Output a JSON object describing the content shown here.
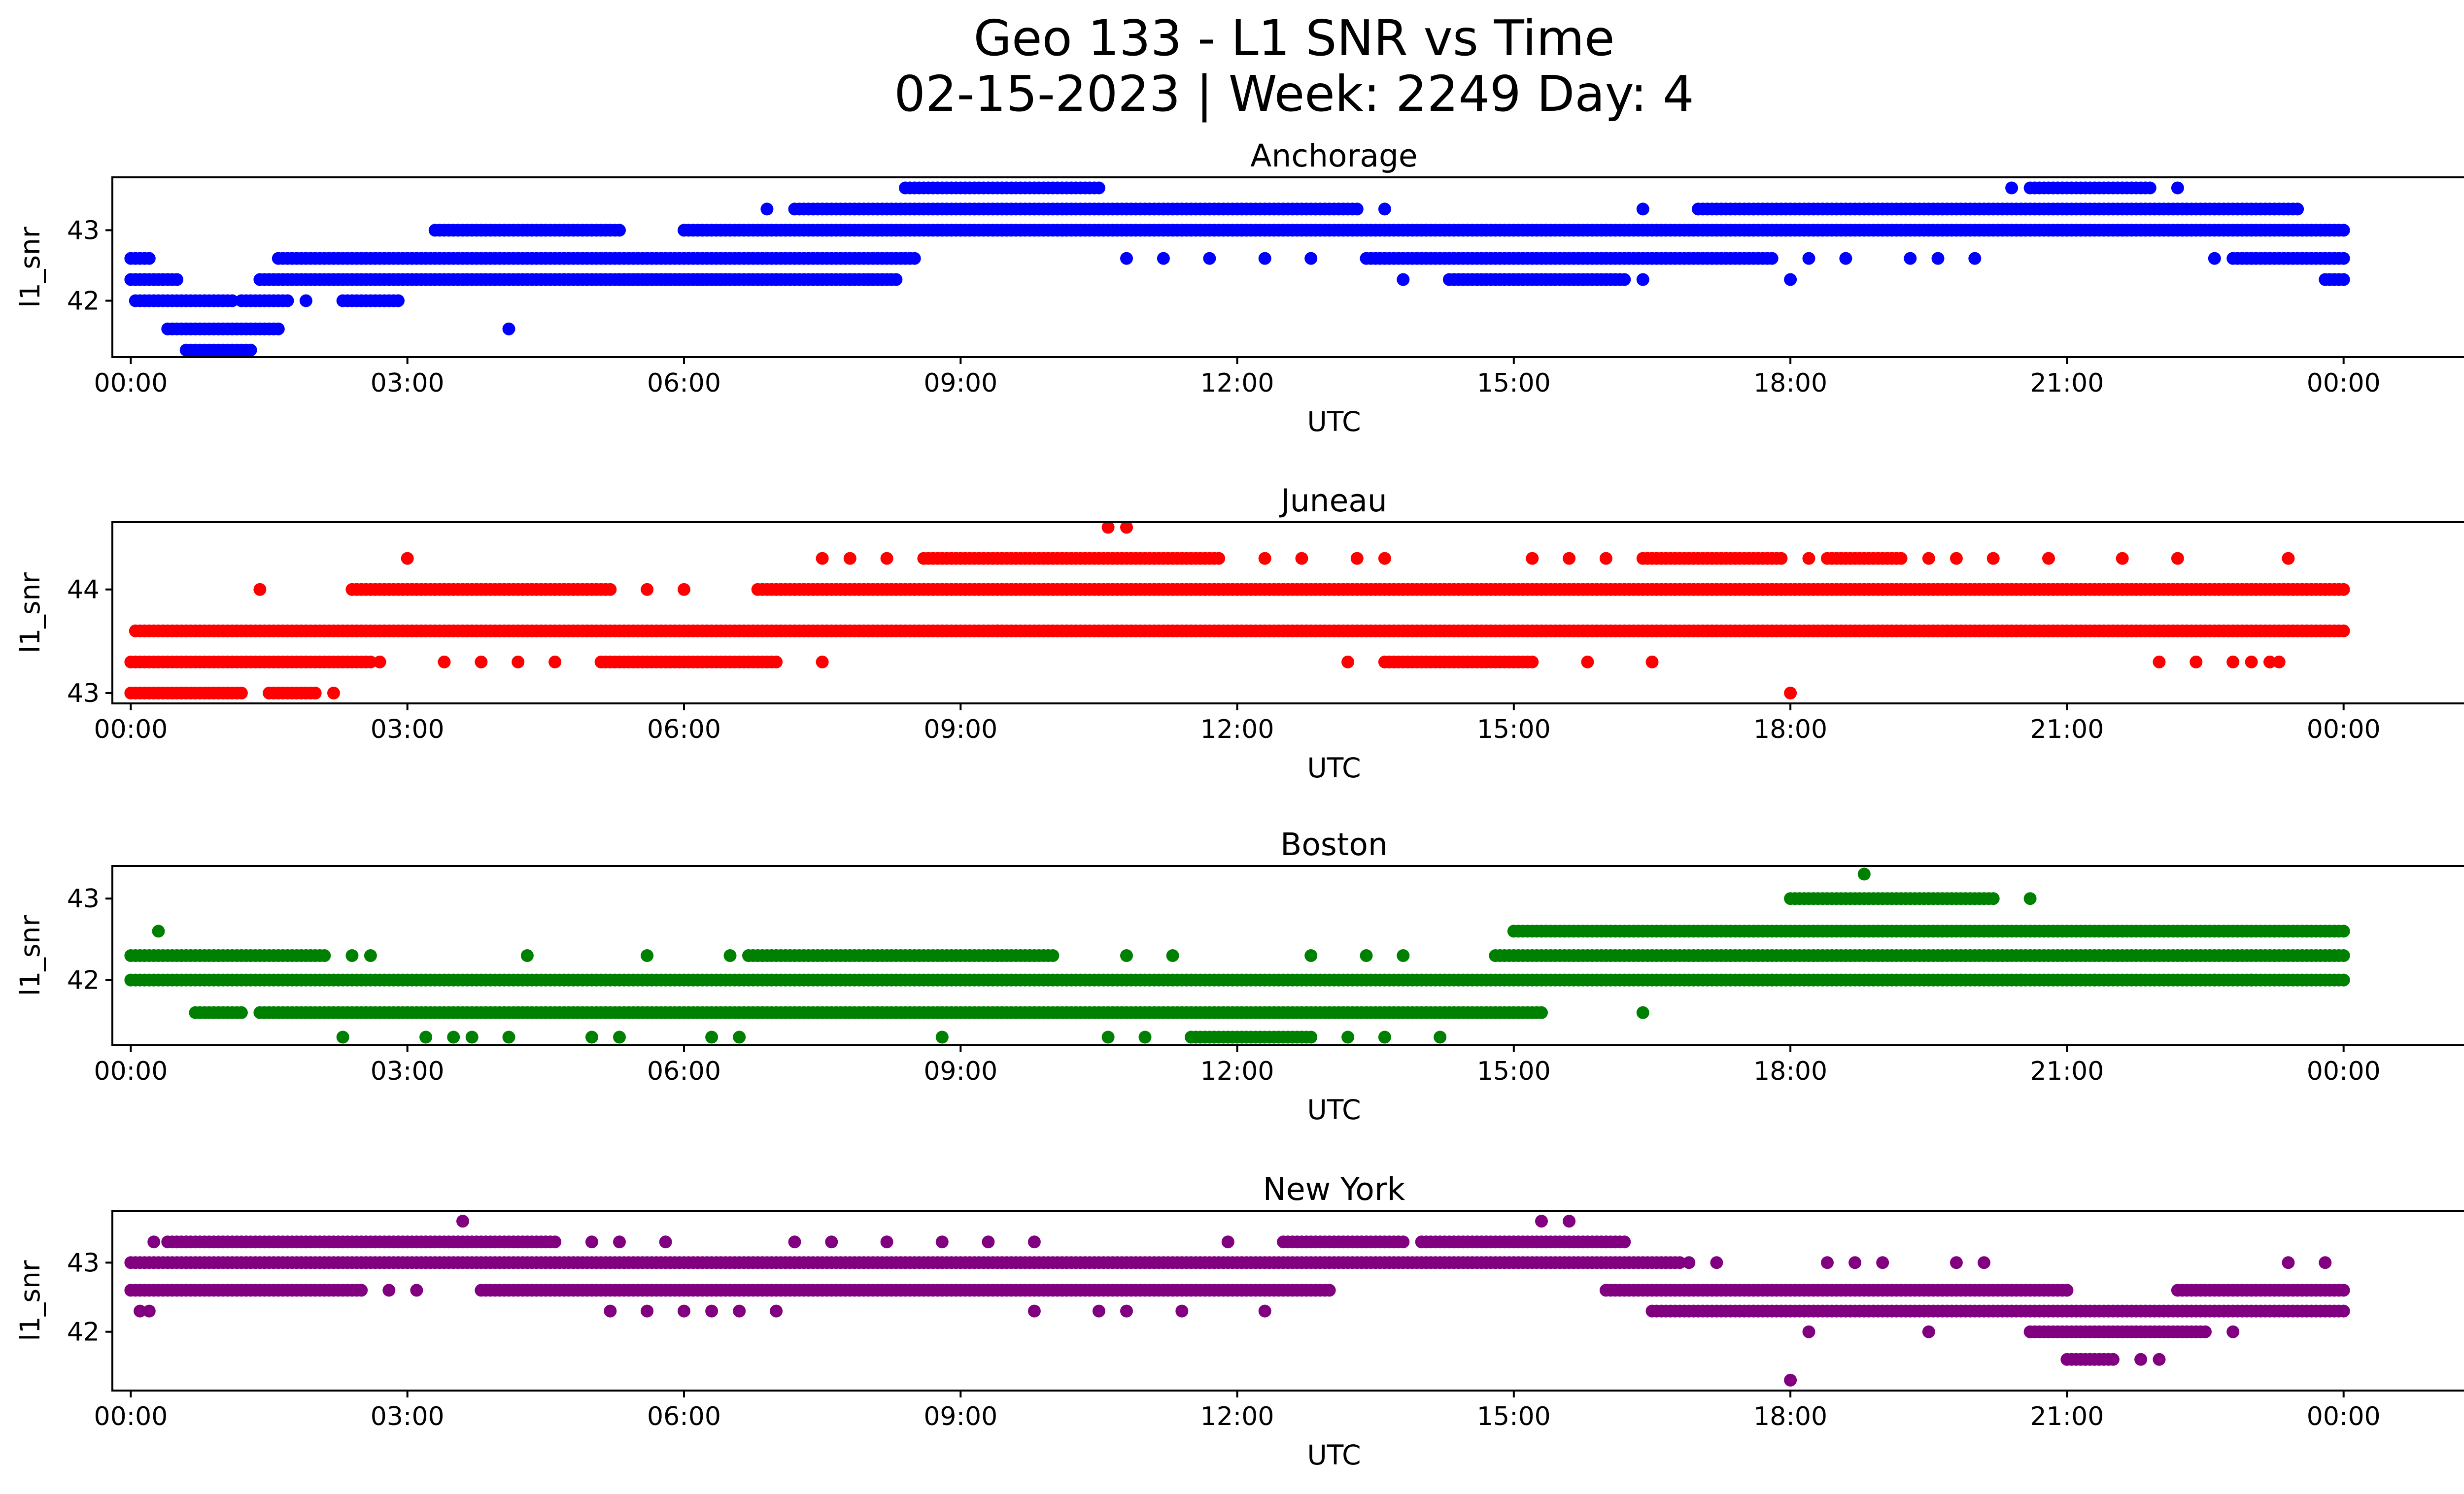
{
  "figure": {
    "title_line1": "Geo 133 - L1 SNR vs Time",
    "title_line2": "02-15-2023 | Week: 2249 Day: 4"
  },
  "chart_data": [
    {
      "type": "scatter",
      "title": "Anchorage",
      "xlabel": "UTC",
      "ylabel": "l1_snr",
      "color": "#0000ff",
      "xlim": [
        -0.2,
        26.3
      ],
      "ylim": [
        41.2,
        43.75
      ],
      "xticks": [
        "00:00",
        "03:00",
        "06:00",
        "09:00",
        "12:00",
        "15:00",
        "18:00",
        "21:00",
        "00:00"
      ],
      "yticks": [
        42,
        43
      ],
      "segments": [
        {
          "y": 42.6,
          "x0": 0.0,
          "x1": 0.2
        },
        {
          "y": 42.3,
          "x0": 0.0,
          "x1": 0.5
        },
        {
          "y": 42.0,
          "x0": 0.05,
          "x1": 1.1
        },
        {
          "y": 41.6,
          "x0": 0.4,
          "x1": 1.6
        },
        {
          "y": 41.3,
          "x0": 0.6,
          "x1": 1.3
        },
        {
          "y": 42.0,
          "x0": 1.2,
          "x1": 1.7
        },
        {
          "y": 42.3,
          "x0": 1.4,
          "x1": 8.3
        },
        {
          "y": 42.6,
          "x0": 1.6,
          "x1": 8.5
        },
        {
          "y": 42.0,
          "x0": 2.3,
          "x1": 2.9
        },
        {
          "y": 43.0,
          "x0": 3.3,
          "x1": 5.3
        },
        {
          "y": 42.3,
          "x0": 5.3,
          "x1": 6.5
        },
        {
          "y": 43.0,
          "x0": 6.0,
          "x1": 24.0
        },
        {
          "y": 43.3,
          "x0": 7.2,
          "x1": 13.3
        },
        {
          "y": 43.6,
          "x0": 8.4,
          "x1": 10.5
        },
        {
          "y": 42.6,
          "x0": 13.4,
          "x1": 17.8
        },
        {
          "y": 42.3,
          "x0": 14.3,
          "x1": 16.2
        },
        {
          "y": 43.3,
          "x0": 17.0,
          "x1": 23.5
        },
        {
          "y": 43.6,
          "x0": 20.6,
          "x1": 21.9
        },
        {
          "y": 42.6,
          "x0": 22.8,
          "x1": 24.0
        },
        {
          "y": 42.3,
          "x0": 23.8,
          "x1": 24.0
        }
      ],
      "points": [
        {
          "x": 1.9,
          "y": 42.0
        },
        {
          "x": 4.1,
          "y": 41.6
        },
        {
          "x": 6.9,
          "y": 43.3
        },
        {
          "x": 7.0,
          "y": 42.3
        },
        {
          "x": 7.8,
          "y": 42.3
        },
        {
          "x": 8.0,
          "y": 42.3
        },
        {
          "x": 10.8,
          "y": 42.6
        },
        {
          "x": 11.2,
          "y": 42.6
        },
        {
          "x": 11.7,
          "y": 42.6
        },
        {
          "x": 12.3,
          "y": 42.6
        },
        {
          "x": 12.8,
          "y": 42.6
        },
        {
          "x": 13.6,
          "y": 43.3
        },
        {
          "x": 13.8,
          "y": 42.3
        },
        {
          "x": 16.4,
          "y": 42.3
        },
        {
          "x": 16.4,
          "y": 43.3
        },
        {
          "x": 18.0,
          "y": 42.3
        },
        {
          "x": 18.2,
          "y": 42.6
        },
        {
          "x": 18.6,
          "y": 42.6
        },
        {
          "x": 19.3,
          "y": 42.6
        },
        {
          "x": 19.6,
          "y": 42.6
        },
        {
          "x": 20.0,
          "y": 42.6
        },
        {
          "x": 20.4,
          "y": 43.6
        },
        {
          "x": 22.2,
          "y": 43.6
        },
        {
          "x": 22.6,
          "y": 42.6
        }
      ]
    },
    {
      "type": "scatter",
      "title": "Juneau",
      "xlabel": "UTC",
      "ylabel": "l1_snr",
      "color": "#ff0000",
      "xlim": [
        -0.2,
        26.3
      ],
      "ylim": [
        42.9,
        44.65
      ],
      "xticks": [
        "00:00",
        "03:00",
        "06:00",
        "09:00",
        "12:00",
        "15:00",
        "18:00",
        "21:00",
        "00:00"
      ],
      "yticks": [
        43,
        44
      ],
      "segments": [
        {
          "y": 43.0,
          "x0": 0.0,
          "x1": 1.2
        },
        {
          "y": 43.3,
          "x0": 0.0,
          "x1": 2.6
        },
        {
          "y": 43.6,
          "x0": 0.05,
          "x1": 24.0
        },
        {
          "y": 43.0,
          "x0": 1.5,
          "x1": 2.0
        },
        {
          "y": 44.0,
          "x0": 2.4,
          "x1": 5.2
        },
        {
          "y": 43.3,
          "x0": 5.1,
          "x1": 7.0
        },
        {
          "y": 44.0,
          "x0": 6.8,
          "x1": 24.0
        },
        {
          "y": 44.3,
          "x0": 8.6,
          "x1": 11.8
        },
        {
          "y": 44.3,
          "x0": 16.4,
          "x1": 17.9
        },
        {
          "y": 44.3,
          "x0": 18.4,
          "x1": 19.2
        },
        {
          "y": 43.3,
          "x0": 13.6,
          "x1": 15.2
        }
      ],
      "points": [
        {
          "x": 1.4,
          "y": 44.0
        },
        {
          "x": 2.0,
          "y": 43.0
        },
        {
          "x": 2.2,
          "y": 43.0
        },
        {
          "x": 2.7,
          "y": 43.3
        },
        {
          "x": 3.0,
          "y": 44.3
        },
        {
          "x": 3.4,
          "y": 43.3
        },
        {
          "x": 3.8,
          "y": 43.3
        },
        {
          "x": 4.2,
          "y": 43.3
        },
        {
          "x": 4.6,
          "y": 43.3
        },
        {
          "x": 5.6,
          "y": 44.0
        },
        {
          "x": 6.0,
          "y": 44.0
        },
        {
          "x": 7.5,
          "y": 43.3
        },
        {
          "x": 7.5,
          "y": 44.3
        },
        {
          "x": 7.8,
          "y": 44.3
        },
        {
          "x": 8.2,
          "y": 44.3
        },
        {
          "x": 9.4,
          "y": 43.6
        },
        {
          "x": 10.6,
          "y": 44.6
        },
        {
          "x": 10.8,
          "y": 44.6
        },
        {
          "x": 12.3,
          "y": 44.3
        },
        {
          "x": 12.7,
          "y": 44.3
        },
        {
          "x": 13.2,
          "y": 43.3
        },
        {
          "x": 13.3,
          "y": 44.3
        },
        {
          "x": 13.6,
          "y": 44.3
        },
        {
          "x": 15.2,
          "y": 44.3
        },
        {
          "x": 15.6,
          "y": 44.3
        },
        {
          "x": 15.8,
          "y": 43.3
        },
        {
          "x": 16.0,
          "y": 44.3
        },
        {
          "x": 16.5,
          "y": 43.3
        },
        {
          "x": 18.0,
          "y": 43.0
        },
        {
          "x": 18.2,
          "y": 44.3
        },
        {
          "x": 19.5,
          "y": 44.3
        },
        {
          "x": 19.8,
          "y": 44.3
        },
        {
          "x": 20.2,
          "y": 44.3
        },
        {
          "x": 20.8,
          "y": 44.3
        },
        {
          "x": 21.6,
          "y": 44.3
        },
        {
          "x": 22.0,
          "y": 43.3
        },
        {
          "x": 22.2,
          "y": 44.3
        },
        {
          "x": 22.4,
          "y": 43.3
        },
        {
          "x": 22.8,
          "y": 43.3
        },
        {
          "x": 23.0,
          "y": 43.3
        },
        {
          "x": 23.2,
          "y": 43.3
        },
        {
          "x": 23.3,
          "y": 43.3
        },
        {
          "x": 23.4,
          "y": 44.3
        }
      ]
    },
    {
      "type": "scatter",
      "title": "Boston",
      "xlabel": "UTC",
      "ylabel": "l1_snr",
      "color": "#008000",
      "xlim": [
        -0.2,
        26.3
      ],
      "ylim": [
        41.2,
        43.4
      ],
      "xticks": [
        "00:00",
        "03:00",
        "06:00",
        "09:00",
        "12:00",
        "15:00",
        "18:00",
        "21:00",
        "00:00"
      ],
      "yticks": [
        42,
        43
      ],
      "segments": [
        {
          "y": 42.3,
          "x0": 0.0,
          "x1": 2.1
        },
        {
          "y": 42.0,
          "x0": 0.0,
          "x1": 24.0
        },
        {
          "y": 41.6,
          "x0": 0.7,
          "x1": 1.2
        },
        {
          "y": 41.6,
          "x0": 1.4,
          "x1": 15.3
        },
        {
          "y": 42.3,
          "x0": 6.7,
          "x1": 10.0
        },
        {
          "y": 42.3,
          "x0": 14.8,
          "x1": 24.0
        },
        {
          "y": 42.6,
          "x0": 15.0,
          "x1": 24.0
        },
        {
          "y": 43.0,
          "x0": 18.0,
          "x1": 20.2
        },
        {
          "y": 41.3,
          "x0": 11.5,
          "x1": 12.8
        }
      ],
      "points": [
        {
          "x": 0.3,
          "y": 42.6
        },
        {
          "x": 2.3,
          "y": 41.3
        },
        {
          "x": 2.4,
          "y": 42.3
        },
        {
          "x": 2.6,
          "y": 42.3
        },
        {
          "x": 3.2,
          "y": 41.3
        },
        {
          "x": 3.5,
          "y": 41.3
        },
        {
          "x": 3.7,
          "y": 41.3
        },
        {
          "x": 4.1,
          "y": 41.3
        },
        {
          "x": 4.3,
          "y": 42.3
        },
        {
          "x": 5.0,
          "y": 41.3
        },
        {
          "x": 5.3,
          "y": 41.3
        },
        {
          "x": 5.6,
          "y": 42.3
        },
        {
          "x": 6.3,
          "y": 41.3
        },
        {
          "x": 6.5,
          "y": 42.3
        },
        {
          "x": 6.6,
          "y": 41.3
        },
        {
          "x": 8.8,
          "y": 41.3
        },
        {
          "x": 10.6,
          "y": 41.3
        },
        {
          "x": 10.8,
          "y": 42.3
        },
        {
          "x": 11.0,
          "y": 41.3
        },
        {
          "x": 11.3,
          "y": 42.3
        },
        {
          "x": 12.8,
          "y": 42.3
        },
        {
          "x": 13.2,
          "y": 41.3
        },
        {
          "x": 13.4,
          "y": 42.3
        },
        {
          "x": 13.6,
          "y": 41.3
        },
        {
          "x": 13.8,
          "y": 42.3
        },
        {
          "x": 14.2,
          "y": 41.3
        },
        {
          "x": 16.4,
          "y": 41.6
        },
        {
          "x": 17.8,
          "y": 42.0
        },
        {
          "x": 18.0,
          "y": 42.0
        },
        {
          "x": 18.8,
          "y": 43.3
        },
        {
          "x": 20.5,
          "y": 42.0
        },
        {
          "x": 20.6,
          "y": 43.0
        },
        {
          "x": 21.3,
          "y": 42.0
        },
        {
          "x": 22.6,
          "y": 42.0
        },
        {
          "x": 23.0,
          "y": 42.0
        }
      ]
    },
    {
      "type": "scatter",
      "title": "New York",
      "xlabel": "UTC",
      "ylabel": "l1_snr",
      "color": "#800080",
      "xlim": [
        -0.2,
        26.3
      ],
      "ylim": [
        41.15,
        43.75
      ],
      "xticks": [
        "00:00",
        "03:00",
        "06:00",
        "09:00",
        "12:00",
        "15:00",
        "18:00",
        "21:00",
        "00:00"
      ],
      "yticks": [
        42,
        43
      ],
      "segments": [
        {
          "y": 43.0,
          "x0": 0.0,
          "x1": 16.8
        },
        {
          "y": 42.6,
          "x0": 0.0,
          "x1": 2.5
        },
        {
          "y": 43.3,
          "x0": 0.4,
          "x1": 4.6
        },
        {
          "y": 42.6,
          "x0": 3.8,
          "x1": 13.0
        },
        {
          "y": 43.3,
          "x0": 12.5,
          "x1": 13.8
        },
        {
          "y": 43.3,
          "x0": 14.0,
          "x1": 16.2
        },
        {
          "y": 42.6,
          "x0": 16.0,
          "x1": 21.0
        },
        {
          "y": 42.3,
          "x0": 16.5,
          "x1": 24.0
        },
        {
          "y": 42.0,
          "x0": 20.6,
          "x1": 22.5
        },
        {
          "y": 41.6,
          "x0": 21.0,
          "x1": 21.5
        },
        {
          "y": 42.6,
          "x0": 22.2,
          "x1": 24.0
        }
      ],
      "points": [
        {
          "x": 0.1,
          "y": 42.3
        },
        {
          "x": 0.2,
          "y": 42.3
        },
        {
          "x": 0.25,
          "y": 43.3
        },
        {
          "x": 2.8,
          "y": 42.6
        },
        {
          "x": 3.1,
          "y": 42.6
        },
        {
          "x": 3.6,
          "y": 43.6
        },
        {
          "x": 5.0,
          "y": 43.3
        },
        {
          "x": 5.2,
          "y": 42.3
        },
        {
          "x": 5.3,
          "y": 43.3
        },
        {
          "x": 5.6,
          "y": 42.3
        },
        {
          "x": 5.8,
          "y": 43.3
        },
        {
          "x": 6.0,
          "y": 42.3
        },
        {
          "x": 6.3,
          "y": 42.3
        },
        {
          "x": 6.6,
          "y": 42.3
        },
        {
          "x": 7.0,
          "y": 42.3
        },
        {
          "x": 7.2,
          "y": 43.3
        },
        {
          "x": 7.6,
          "y": 43.3
        },
        {
          "x": 8.2,
          "y": 43.3
        },
        {
          "x": 8.8,
          "y": 43.3
        },
        {
          "x": 9.3,
          "y": 43.3
        },
        {
          "x": 9.8,
          "y": 43.3
        },
        {
          "x": 9.8,
          "y": 42.3
        },
        {
          "x": 10.5,
          "y": 42.3
        },
        {
          "x": 10.8,
          "y": 42.3
        },
        {
          "x": 11.4,
          "y": 42.3
        },
        {
          "x": 11.9,
          "y": 43.3
        },
        {
          "x": 12.3,
          "y": 42.3
        },
        {
          "x": 15.3,
          "y": 43.6
        },
        {
          "x": 15.6,
          "y": 43.6
        },
        {
          "x": 16.9,
          "y": 43.0
        },
        {
          "x": 17.2,
          "y": 43.0
        },
        {
          "x": 18.0,
          "y": 41.3
        },
        {
          "x": 18.2,
          "y": 42.0
        },
        {
          "x": 18.4,
          "y": 43.0
        },
        {
          "x": 18.7,
          "y": 43.0
        },
        {
          "x": 19.0,
          "y": 43.0
        },
        {
          "x": 19.5,
          "y": 42.0
        },
        {
          "x": 19.8,
          "y": 43.0
        },
        {
          "x": 20.1,
          "y": 43.0
        },
        {
          "x": 21.8,
          "y": 41.6
        },
        {
          "x": 22.0,
          "y": 41.6
        },
        {
          "x": 22.8,
          "y": 42.0
        },
        {
          "x": 23.4,
          "y": 43.0
        },
        {
          "x": 23.8,
          "y": 43.0
        }
      ]
    }
  ]
}
